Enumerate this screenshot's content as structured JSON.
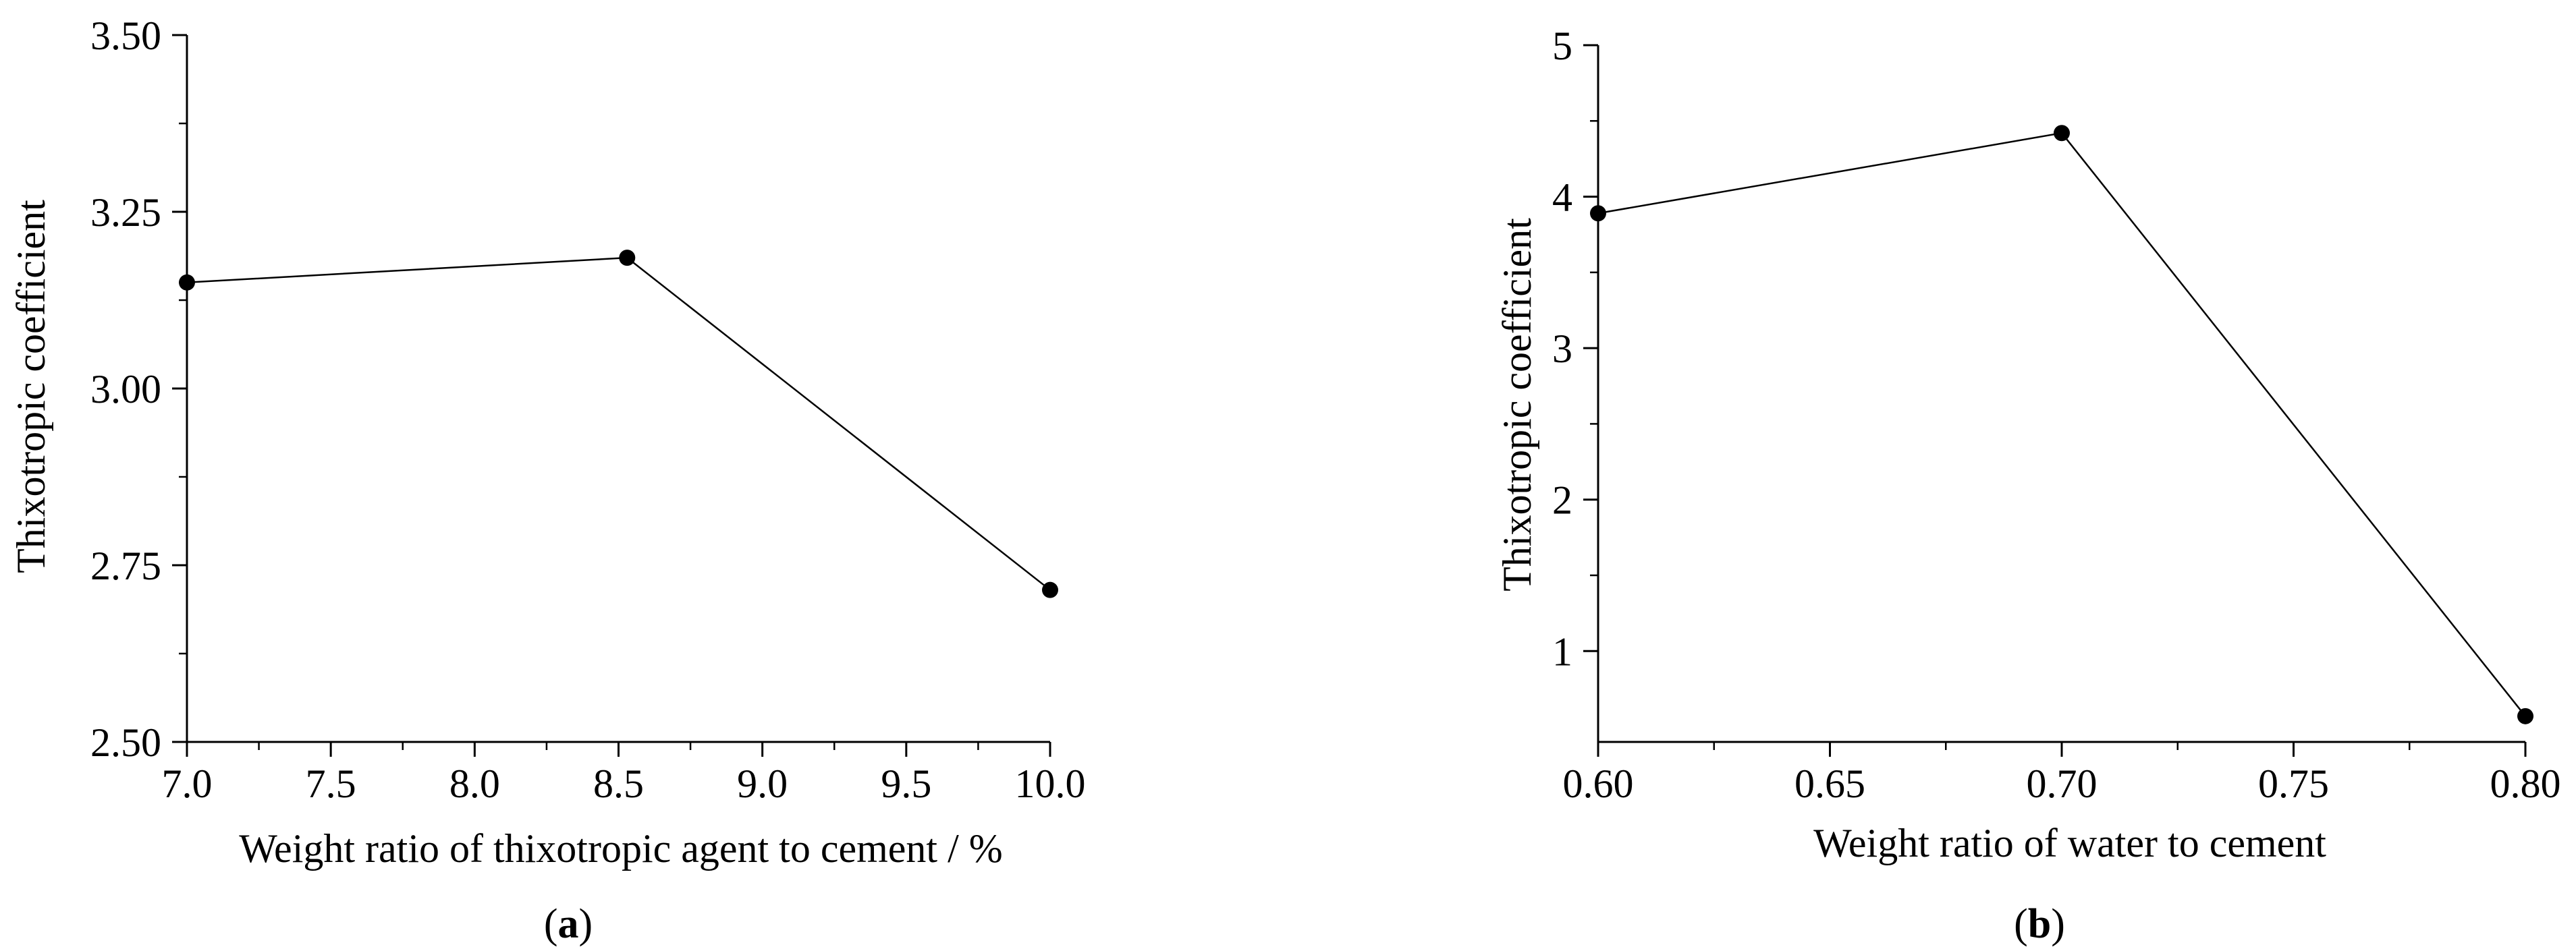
{
  "chart_data": [
    {
      "type": "line",
      "panel_label": "a",
      "xlabel": "Weight ratio of thixotropic agent to cement  / %",
      "ylabel": "Thixotropic coefficient",
      "xlim": [
        7.0,
        10.0
      ],
      "ylim": [
        2.5,
        3.5
      ],
      "xticks": [
        "7.0",
        "7.5",
        "8.0",
        "8.5",
        "9.0",
        "9.5",
        "10.0"
      ],
      "yticks": [
        "2.50",
        "2.75",
        "3.00",
        "3.25",
        "3.50"
      ],
      "x": [
        7.0,
        8.53,
        10.0
      ],
      "y": [
        3.15,
        3.185,
        2.715
      ],
      "grid": false,
      "marker": "filled-circle",
      "color": "#000000"
    },
    {
      "type": "line",
      "panel_label": "b",
      "xlabel": "Weight ratio of water to cement",
      "ylabel": "Thixotropic coefficient",
      "xlim": [
        0.6,
        0.8
      ],
      "ylim": [
        0.4,
        5.0
      ],
      "xticks": [
        "0.60",
        "0.65",
        "0.70",
        "0.75",
        "0.80"
      ],
      "yticks": [
        "1",
        "2",
        "3",
        "4",
        "5"
      ],
      "x": [
        0.6,
        0.7,
        0.8
      ],
      "y": [
        3.89,
        4.42,
        0.57
      ],
      "grid": false,
      "marker": "filled-circle",
      "color": "#000000"
    }
  ]
}
